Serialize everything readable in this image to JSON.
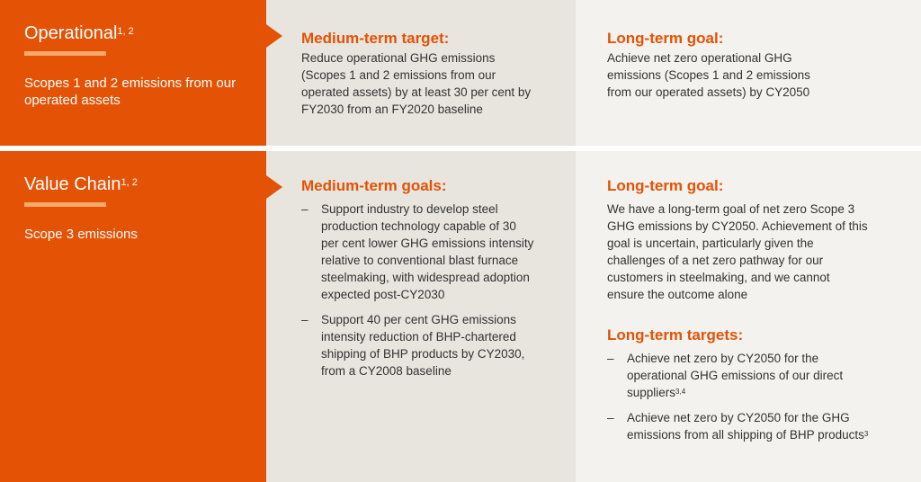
{
  "operational": {
    "title": "Operational",
    "title_sup": "1, 2",
    "subtitle": "Scopes 1 and 2 emissions from our operated assets",
    "medium_heading": "Medium-term target:",
    "medium_text": "Reduce operational GHG emissions (Scopes 1 and 2 emissions from our operated assets) by at least 30 per cent by FY2030 from an FY2020 baseline",
    "long_heading": "Long-term goal:",
    "long_text": "Achieve net zero operational GHG emissions (Scopes 1 and 2 emissions from our operated assets) by CY2050"
  },
  "value_chain": {
    "title": "Value Chain",
    "title_sup": "1, 2",
    "subtitle": "Scope 3 emissions",
    "medium_heading": "Medium-term goals:",
    "medium_items": [
      "Support industry to develop steel production technology capable of 30 per cent lower GHG emissions intensity relative to conventional blast furnace steelmaking, with widespread adoption expected post-CY2030",
      "Support 40 per cent GHG emissions intensity reduction of BHP-chartered shipping of BHP products by CY2030, from a CY2008 baseline"
    ],
    "long_heading": "Long-term goal:",
    "long_text": "We have a long-term goal of net zero Scope 3 GHG emissions by CY2050. Achievement of this goal is uncertain, particularly given the challenges of a net zero pathway for our customers in steelmaking, and we cannot ensure the outcome alone",
    "targets_heading": "Long-term targets:",
    "target_items": [
      {
        "text": "Achieve net zero by CY2050 for the operational GHG emissions of our direct suppliers",
        "sup": "3,4"
      },
      {
        "text": "Achieve net zero by CY2050 for the GHG emissions from all shipping of BHP products",
        "sup": "3"
      }
    ]
  },
  "colors": {
    "accent": "#e35205",
    "accent_light": "#f7a96b",
    "mid_bg": "#e8e5de",
    "right_bg": "#f4f2ee"
  }
}
